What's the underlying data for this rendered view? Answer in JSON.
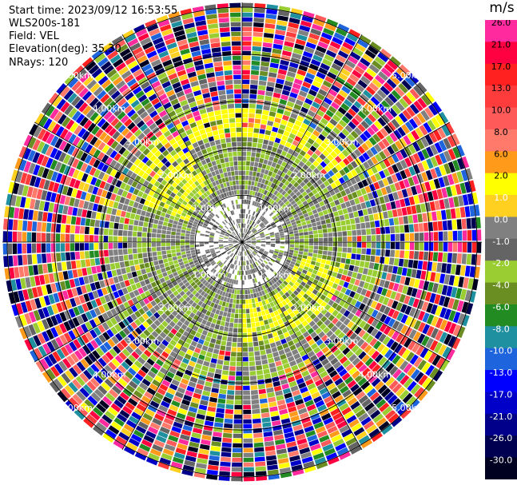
{
  "header": {
    "start_time": "Start time: 2023/09/12 16:53:55",
    "station": "WLS200s-181",
    "field": "Field: VEL",
    "elevation": "Elevation(deg): 35.30",
    "nrays": "NRays: 120"
  },
  "colorbar": {
    "unit": "m/s",
    "levels": [
      {
        "label": "26.0",
        "color": "#ff2a9d"
      },
      {
        "label": "21.0",
        "color": "#ff0040"
      },
      {
        "label": "17.0",
        "color": "#ff2020"
      },
      {
        "label": "13.0",
        "color": "#ff3c3c"
      },
      {
        "label": "10.0",
        "color": "#ff5a5a"
      },
      {
        "label": "8.0",
        "color": "#ff7a6a"
      },
      {
        "label": "6.0",
        "color": "#ff9a1a"
      },
      {
        "label": "2.0",
        "color": "#ffff00"
      },
      {
        "label": "1.0",
        "color": "#ffd020"
      },
      {
        "label": "0.0",
        "color": "#808080"
      },
      {
        "label": "-1.0",
        "color": "#646464"
      },
      {
        "label": "-2.0",
        "color": "#9acd32"
      },
      {
        "label": "-4.0",
        "color": "#6b8e23"
      },
      {
        "label": "-6.0",
        "color": "#228b22"
      },
      {
        "label": "-8.0",
        "color": "#1e90a0"
      },
      {
        "label": "-10.0",
        "color": "#1e64dc"
      },
      {
        "label": "-13.0",
        "color": "#0000ff"
      },
      {
        "label": "-17.0",
        "color": "#0000c8"
      },
      {
        "label": "-21.0",
        "color": "#00008b"
      },
      {
        "label": "-26.0",
        "color": "#000050"
      },
      {
        "label": "-30.0",
        "color": "#000020"
      }
    ]
  },
  "chart_data": {
    "type": "heatmap",
    "projection": "polar-ppi",
    "nrays": 120,
    "range_ring_labels": [
      "1.00km",
      "2.00km",
      "3.00km",
      "4.00km",
      "5.00km"
    ],
    "grid": true
  }
}
